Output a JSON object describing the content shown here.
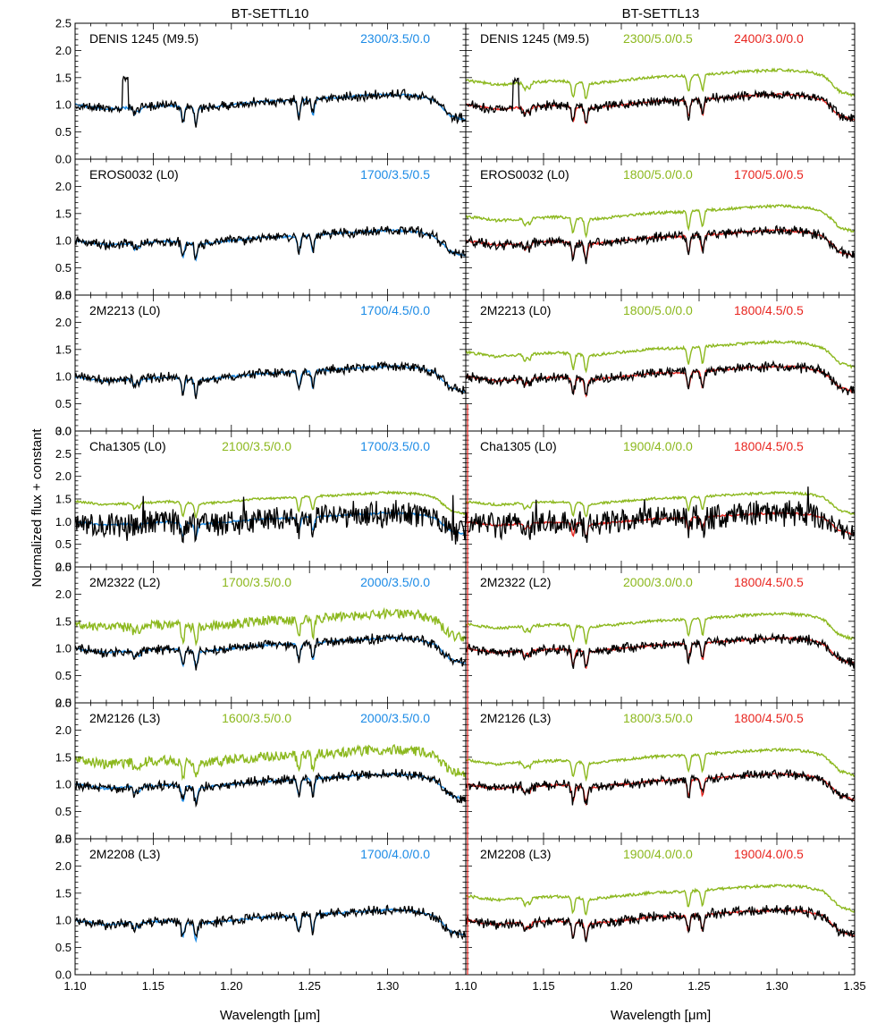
{
  "chart_data": {
    "type": "line",
    "ylabel": "Normalized flux + constant",
    "xlabel": "Wavelength [μm]",
    "xlim": [
      1.1,
      1.35
    ],
    "x_ticks": [
      "1.10",
      "1.15",
      "1.20",
      "1.25",
      "1.30"
    ],
    "x_ticks_right": [
      "1.10",
      "1.15",
      "1.20",
      "1.25",
      "1.30",
      "1.35"
    ],
    "colors": {
      "observed": "#000000",
      "blue": "#1c8be6",
      "green": "#8cb81e",
      "red": "#e8251f"
    },
    "columns": [
      "BT-SETTL10",
      "BT-SETTL13"
    ],
    "panels": [
      {
        "object": "DENIS 1245 (M9.5)",
        "ylim": [
          0,
          2.5
        ],
        "y_ticks": [
          "0.0",
          "0.5",
          "1.0",
          "1.5",
          "2.0",
          "2.5"
        ],
        "left": [
          {
            "label": "2300/3.5/0.0",
            "color": "blue"
          }
        ],
        "right": [
          {
            "label": "2300/5.0/0.5",
            "color": "green"
          },
          {
            "label": "2400/3.0/0.0",
            "color": "red"
          }
        ]
      },
      {
        "object": "EROS0032 (L0)",
        "ylim": [
          0,
          2.5
        ],
        "y_ticks": [
          "0.0",
          "0.5",
          "1.0",
          "1.5",
          "2.0"
        ],
        "left": [
          {
            "label": "1700/3.5/0.5",
            "color": "blue"
          }
        ],
        "right": [
          {
            "label": "1800/5.0/0.0",
            "color": "green"
          },
          {
            "label": "1700/5.0/0.5",
            "color": "red"
          }
        ]
      },
      {
        "object": "2M2213 (L0)",
        "ylim": [
          0,
          2.5
        ],
        "y_ticks": [
          "0.0",
          "0.5",
          "1.0",
          "1.5",
          "2.0",
          "2.5"
        ],
        "left": [
          {
            "label": "1700/4.5/0.0",
            "color": "blue"
          }
        ],
        "right": [
          {
            "label": "1800/5.0/0.0",
            "color": "green"
          },
          {
            "label": "1800/4.5/0.5",
            "color": "red"
          }
        ]
      },
      {
        "object": "Cha1305 (L0)",
        "ylim": [
          0,
          3.0
        ],
        "y_ticks": [
          "0.0",
          "0.5",
          "1.0",
          "1.5",
          "2.0",
          "2.5",
          "3.0"
        ],
        "left": [
          {
            "label": "2100/3.5/0.0",
            "color": "green"
          },
          {
            "label": "1700/3.5/0.0",
            "color": "blue"
          }
        ],
        "right": [
          {
            "label": "1900/4.0/0.0",
            "color": "green"
          },
          {
            "label": "1800/4.5/0.5",
            "color": "red"
          }
        ]
      },
      {
        "object": "2M2322 (L2)",
        "ylim": [
          0,
          2.5
        ],
        "y_ticks": [
          "0.0",
          "0.5",
          "1.0",
          "1.5",
          "2.0",
          "2.5"
        ],
        "left": [
          {
            "label": "1700/3.5/0.0",
            "color": "green"
          },
          {
            "label": "2000/3.5/0.0",
            "color": "blue"
          }
        ],
        "right": [
          {
            "label": "2000/3.0/0.0",
            "color": "green"
          },
          {
            "label": "1800/4.5/0.5",
            "color": "red"
          }
        ]
      },
      {
        "object": "2M2126 (L3)",
        "ylim": [
          0,
          2.5
        ],
        "y_ticks": [
          "0.0",
          "0.5",
          "1.0",
          "1.5",
          "2.0",
          "2.5"
        ],
        "left": [
          {
            "label": "1600/3.5/0.0",
            "color": "green"
          },
          {
            "label": "2000/3.5/0.0",
            "color": "blue"
          }
        ],
        "right": [
          {
            "label": "1800/3.5/0.0",
            "color": "green"
          },
          {
            "label": "1800/4.5/0.5",
            "color": "red"
          }
        ]
      },
      {
        "object": "2M2208 (L3)",
        "ylim": [
          0,
          2.5
        ],
        "y_ticks": [
          "0.0",
          "0.5",
          "1.0",
          "1.5",
          "2.0",
          "2.5"
        ],
        "left": [
          {
            "label": "1700/4.0/0.0",
            "color": "blue"
          }
        ],
        "right": [
          {
            "label": "1900/4.0/0.0",
            "color": "green"
          },
          {
            "label": "1900/4.0/0.5",
            "color": "red"
          }
        ]
      }
    ],
    "continuum_knots": {
      "x": [
        1.1,
        1.12,
        1.14,
        1.16,
        1.18,
        1.2,
        1.22,
        1.24,
        1.26,
        1.28,
        1.3,
        1.31,
        1.32,
        1.33,
        1.335,
        1.34,
        1.35
      ],
      "y": [
        1.0,
        0.92,
        0.96,
        0.99,
        0.94,
        1.0,
        1.06,
        1.08,
        1.12,
        1.16,
        1.19,
        1.18,
        1.16,
        1.08,
        0.95,
        0.8,
        0.72
      ]
    },
    "absorption_lines": [
      {
        "x": 1.169,
        "depth": 0.28
      },
      {
        "x": 1.1773,
        "depth": 0.3
      },
      {
        "x": 1.2432,
        "depth": 0.3
      },
      {
        "x": 1.2522,
        "depth": 0.3
      },
      {
        "x": 1.138,
        "depth": 0.12
      },
      {
        "x": 1.141,
        "depth": 0.1
      }
    ],
    "green_offset": 0.45
  }
}
